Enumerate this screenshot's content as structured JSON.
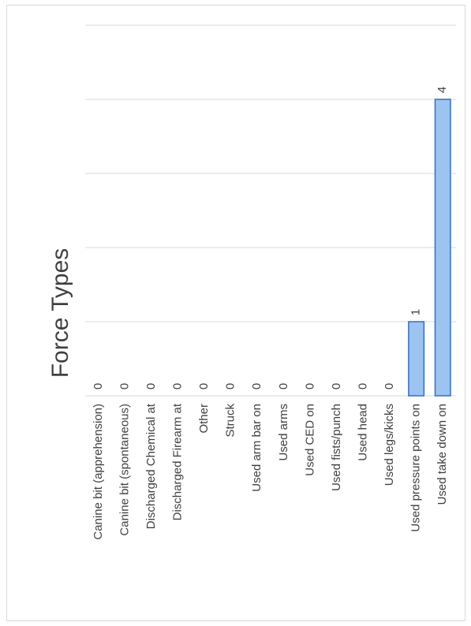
{
  "chart_data": {
    "type": "bar",
    "orientation": "horizontal",
    "title": "Force Types",
    "categories": [
      "Canine bit (apprehension)",
      "Canine bit (spontaneous)",
      "Discharged Chemical at",
      "Discharged Firearm at",
      "Other",
      "Struck",
      "Used arm bar on",
      "Used arms",
      "Used CED on",
      "Used fists/punch",
      "Used head",
      "Used legs/kicks",
      "Used pressure points on",
      "Used take down on"
    ],
    "values": [
      0,
      0,
      0,
      0,
      0,
      0,
      0,
      0,
      0,
      0,
      0,
      0,
      1,
      4
    ],
    "data_labels": [
      "0",
      "0",
      "0",
      "0",
      "0",
      "0",
      "0",
      "0",
      "0",
      "0",
      "0",
      "0",
      "1",
      "4"
    ],
    "xlim": [
      0,
      5
    ],
    "gridlines": true,
    "bar_color": "#9dc3f0",
    "bar_edge_color": "#2f6fcf",
    "rotated_page": true
  }
}
